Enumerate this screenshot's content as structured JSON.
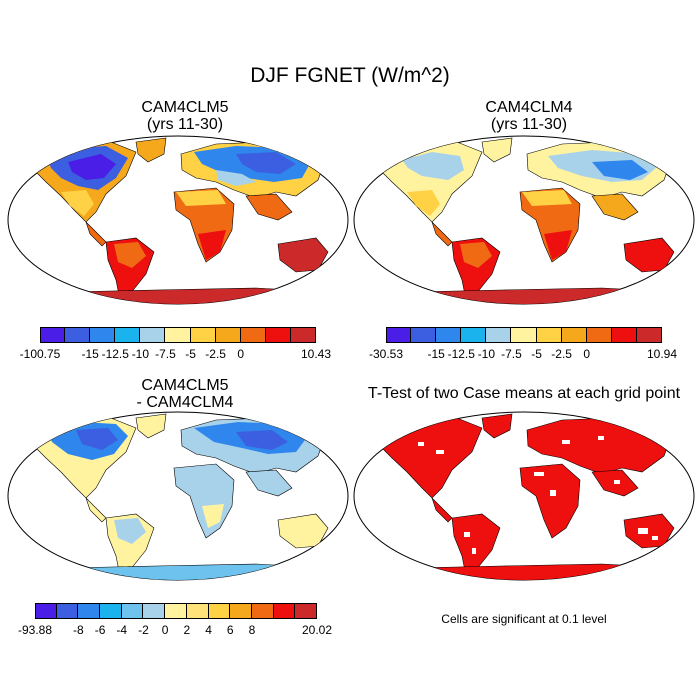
{
  "figure": {
    "title": "DJF FGNET (W/m^2)"
  },
  "panels": [
    {
      "id": "cam4clm5",
      "title_line1": "CAM4CLM5",
      "title_line2": "(yrs 11-30)"
    },
    {
      "id": "cam4clm4",
      "title_line1": "CAM4CLM4",
      "title_line2": "(yrs 11-30)"
    },
    {
      "id": "difference",
      "title_line1": "CAM4CLM5",
      "title_line2": "- CAM4CLM4"
    },
    {
      "id": "ttest",
      "title_line1": "T-Test of two Case means at each grid point",
      "note": "Cells are significant at 0.1 level"
    }
  ],
  "colorbars": {
    "cam4clm5": {
      "colors": [
        "#4a1ee6",
        "#3b5fe0",
        "#2f86ec",
        "#1ab3ee",
        "#a8d2ea",
        "#fff3a0",
        "#ffd145",
        "#f5a81c",
        "#f06a14",
        "#ee0f0f",
        "#cc2a2a"
      ],
      "labels": [
        "-100.75",
        "-15",
        "-12.5",
        "-10",
        "-7.5",
        "-5",
        "-2.5",
        "0",
        "10.43"
      ],
      "label_positions": [
        0,
        2,
        3,
        4,
        5,
        6,
        7,
        8,
        10
      ]
    },
    "cam4clm4": {
      "colors": [
        "#4a1ee6",
        "#3b5fe0",
        "#2f86ec",
        "#1ab3ee",
        "#a8d2ea",
        "#fff3a0",
        "#ffd145",
        "#f5a81c",
        "#f06a14",
        "#ee0f0f",
        "#cc2a2a"
      ],
      "labels": [
        "-30.53",
        "-15",
        "-12.5",
        "-10",
        "-7.5",
        "-5",
        "-2.5",
        "0",
        "10.94"
      ],
      "label_positions": [
        0,
        2,
        3,
        4,
        5,
        6,
        7,
        8,
        10
      ]
    },
    "difference": {
      "colors": [
        "#4a1ee6",
        "#3b5fe0",
        "#2f86ec",
        "#1ab3ee",
        "#6ec3ee",
        "#a8d2ea",
        "#fff3a0",
        "#ffe27a",
        "#ffd145",
        "#f5a81c",
        "#f06a14",
        "#ee0f0f",
        "#cc2a2a"
      ],
      "labels": [
        "-93.88",
        "-8",
        "-6",
        "-4",
        "-2",
        "0",
        "2",
        "4",
        "6",
        "8",
        "20.02"
      ],
      "label_positions": [
        0,
        2,
        3,
        4,
        5,
        6,
        7,
        8,
        9,
        10,
        12
      ]
    }
  }
}
